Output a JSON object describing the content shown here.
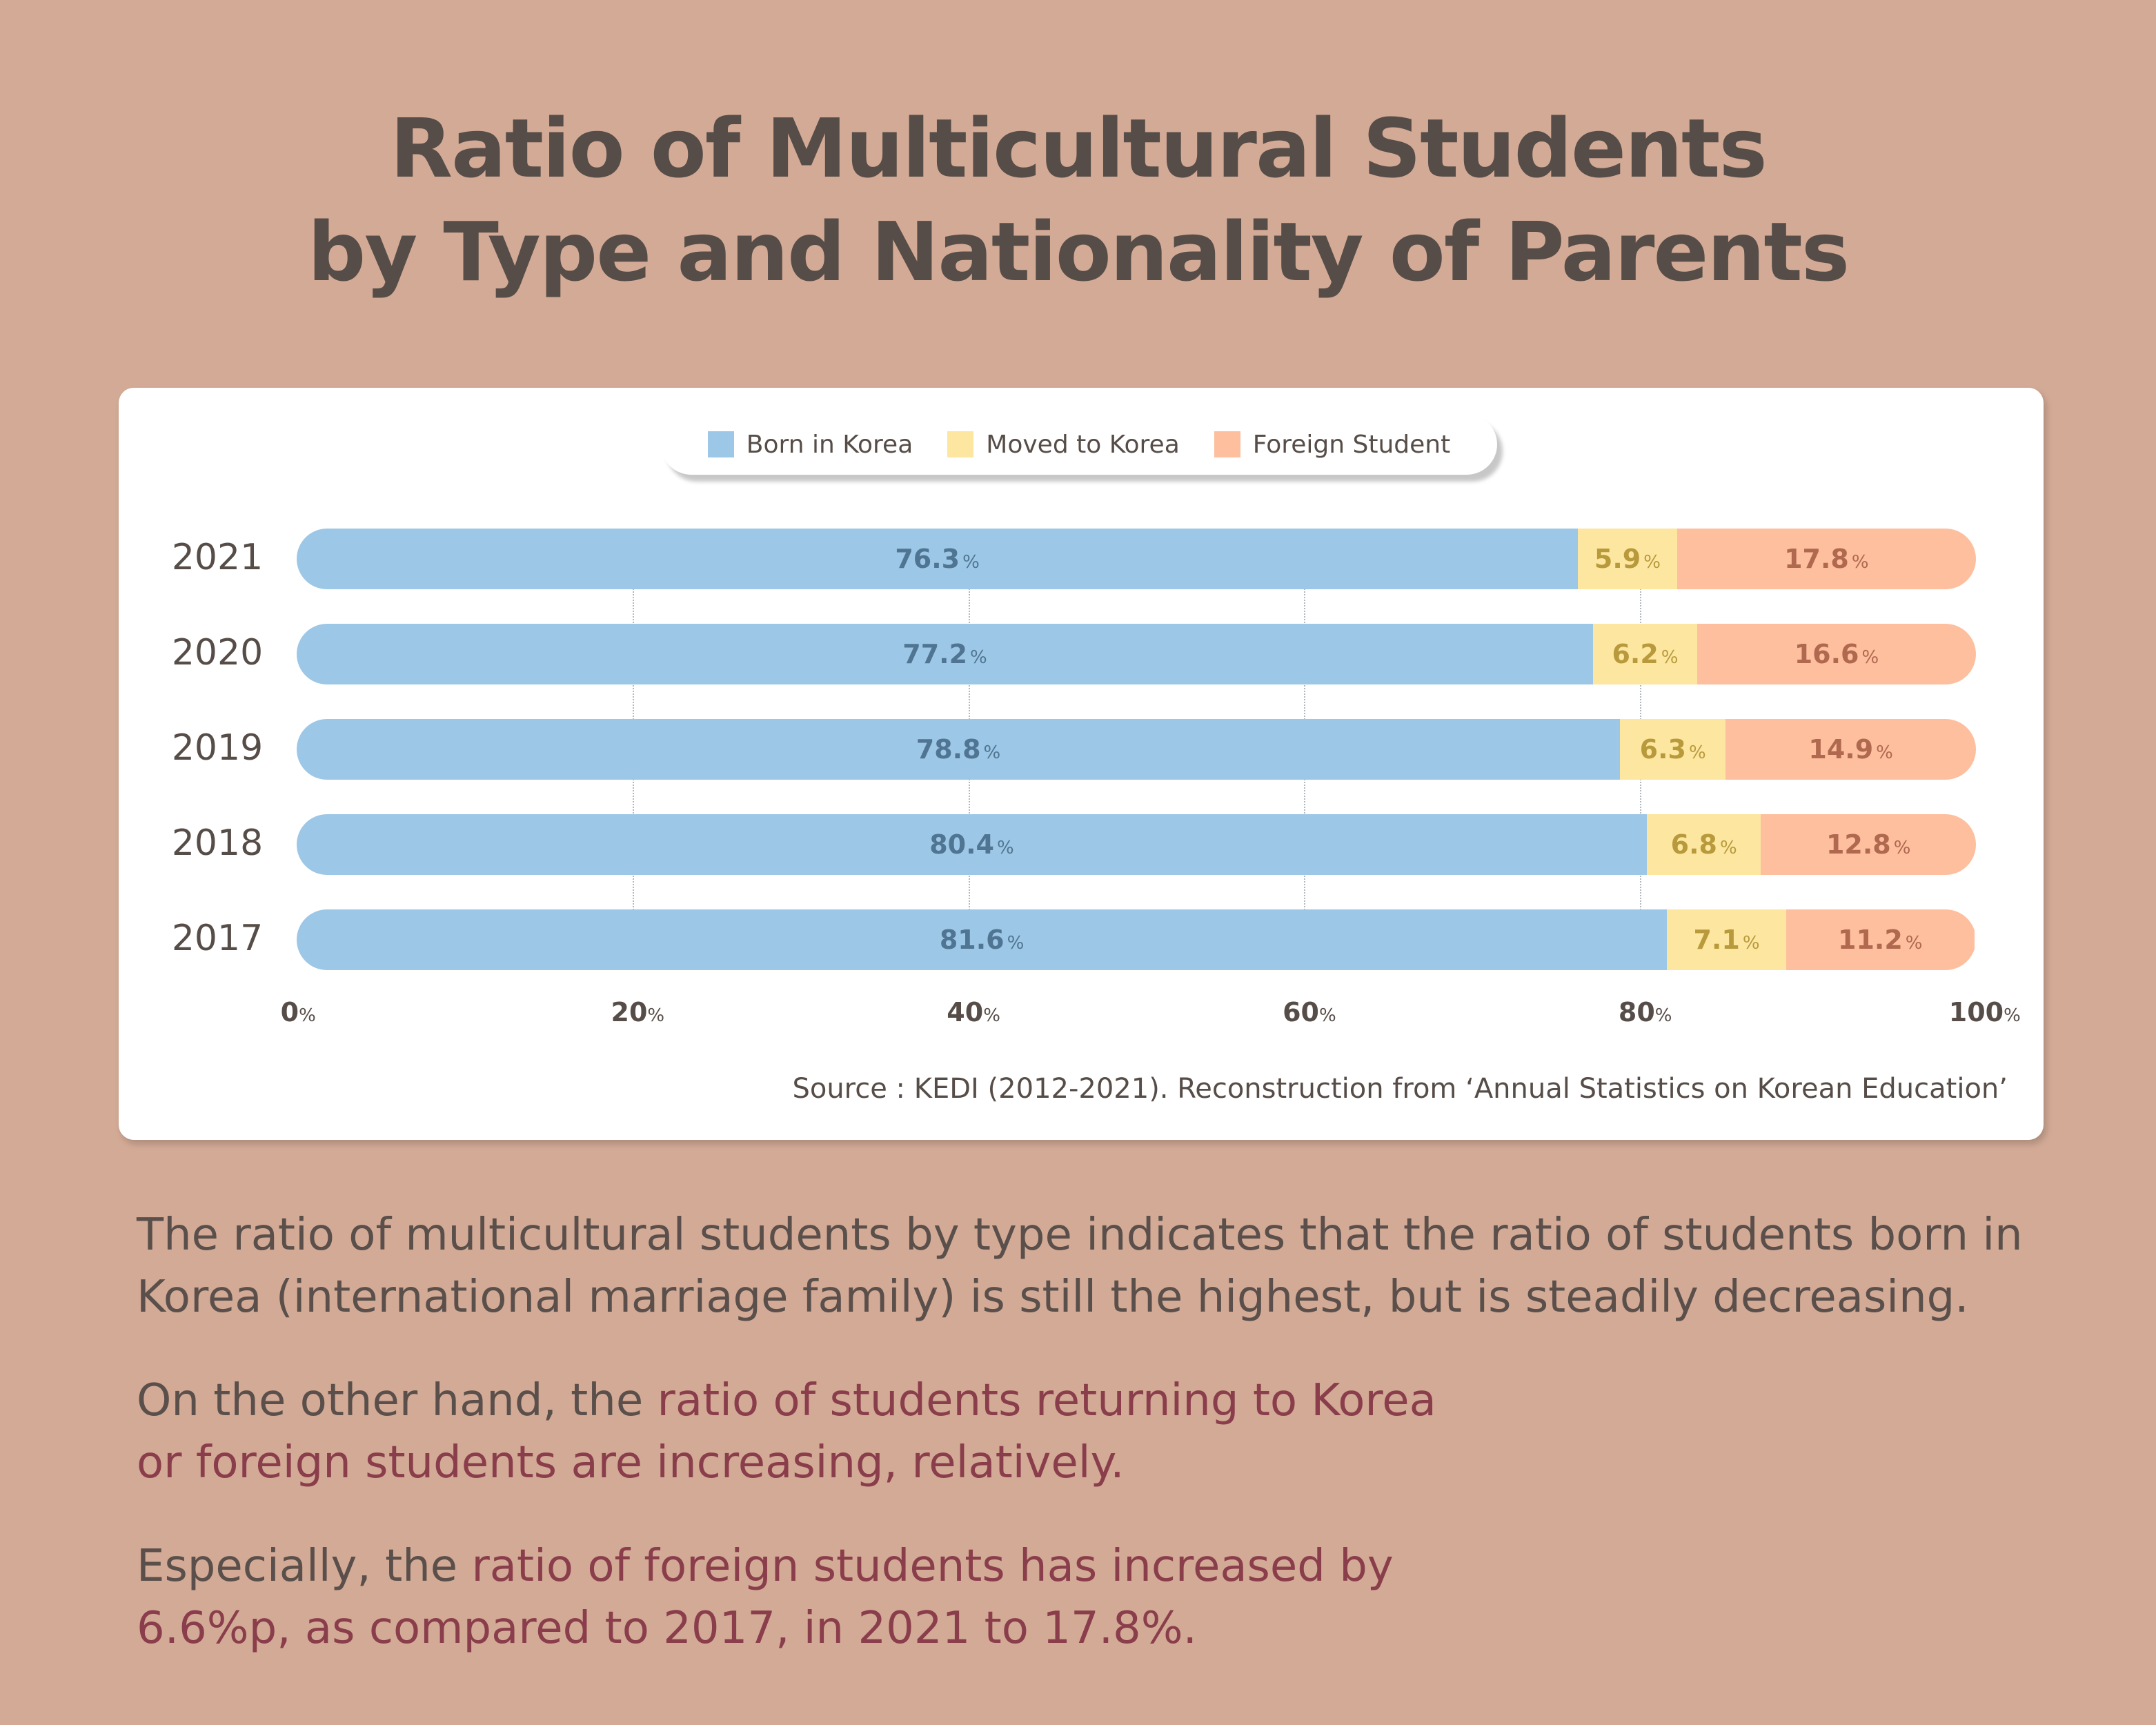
{
  "title": [
    "Ratio of Multicultural Students",
    "by Type and Nationality of Parents"
  ],
  "chart_data": {
    "type": "bar",
    "orientation": "horizontal",
    "stacked": true,
    "categories": [
      "2021",
      "2020",
      "2019",
      "2018",
      "2017"
    ],
    "series": [
      {
        "name": "Born in Korea",
        "color": "#9dc7e6",
        "label_color": "#4f7592",
        "values": [
          76.3,
          77.2,
          78.8,
          80.4,
          81.6
        ]
      },
      {
        "name": "Moved to Korea",
        "color": "#fce6a0",
        "label_color": "#b89a3c",
        "values": [
          5.9,
          6.2,
          6.3,
          6.8,
          7.1
        ]
      },
      {
        "name": "Foreign Student",
        "color": "#fdbf9e",
        "label_color": "#b0684f",
        "values": [
          17.8,
          16.6,
          14.9,
          12.8,
          11.2
        ]
      }
    ],
    "xlim": [
      0,
      100
    ],
    "xticks": [
      "0",
      "20",
      "40",
      "60",
      "80",
      "100"
    ],
    "tick_unit": "%",
    "value_unit": "%",
    "grid": "vertical dotted",
    "legend": "top-center"
  },
  "source": "Source : KEDI (2012-2021). Reconstruction from ‘Annual Statistics on Korean Education’",
  "paragraphs": [
    {
      "plain": "The ratio of multicultural students by type indicates that the ratio of students born in Korea (international marriage family) is still the highest, but is steadily decreasing."
    },
    {
      "plain": "On the other hand, the ",
      "highlight": "ratio of students returning to Korea or foreign students are increasing, relatively."
    },
    {
      "plain": "Especially, the ",
      "highlight": "ratio of foreign students has increased by 6.6%p, as compared to 2017, in 2021 to 17.8%."
    }
  ]
}
